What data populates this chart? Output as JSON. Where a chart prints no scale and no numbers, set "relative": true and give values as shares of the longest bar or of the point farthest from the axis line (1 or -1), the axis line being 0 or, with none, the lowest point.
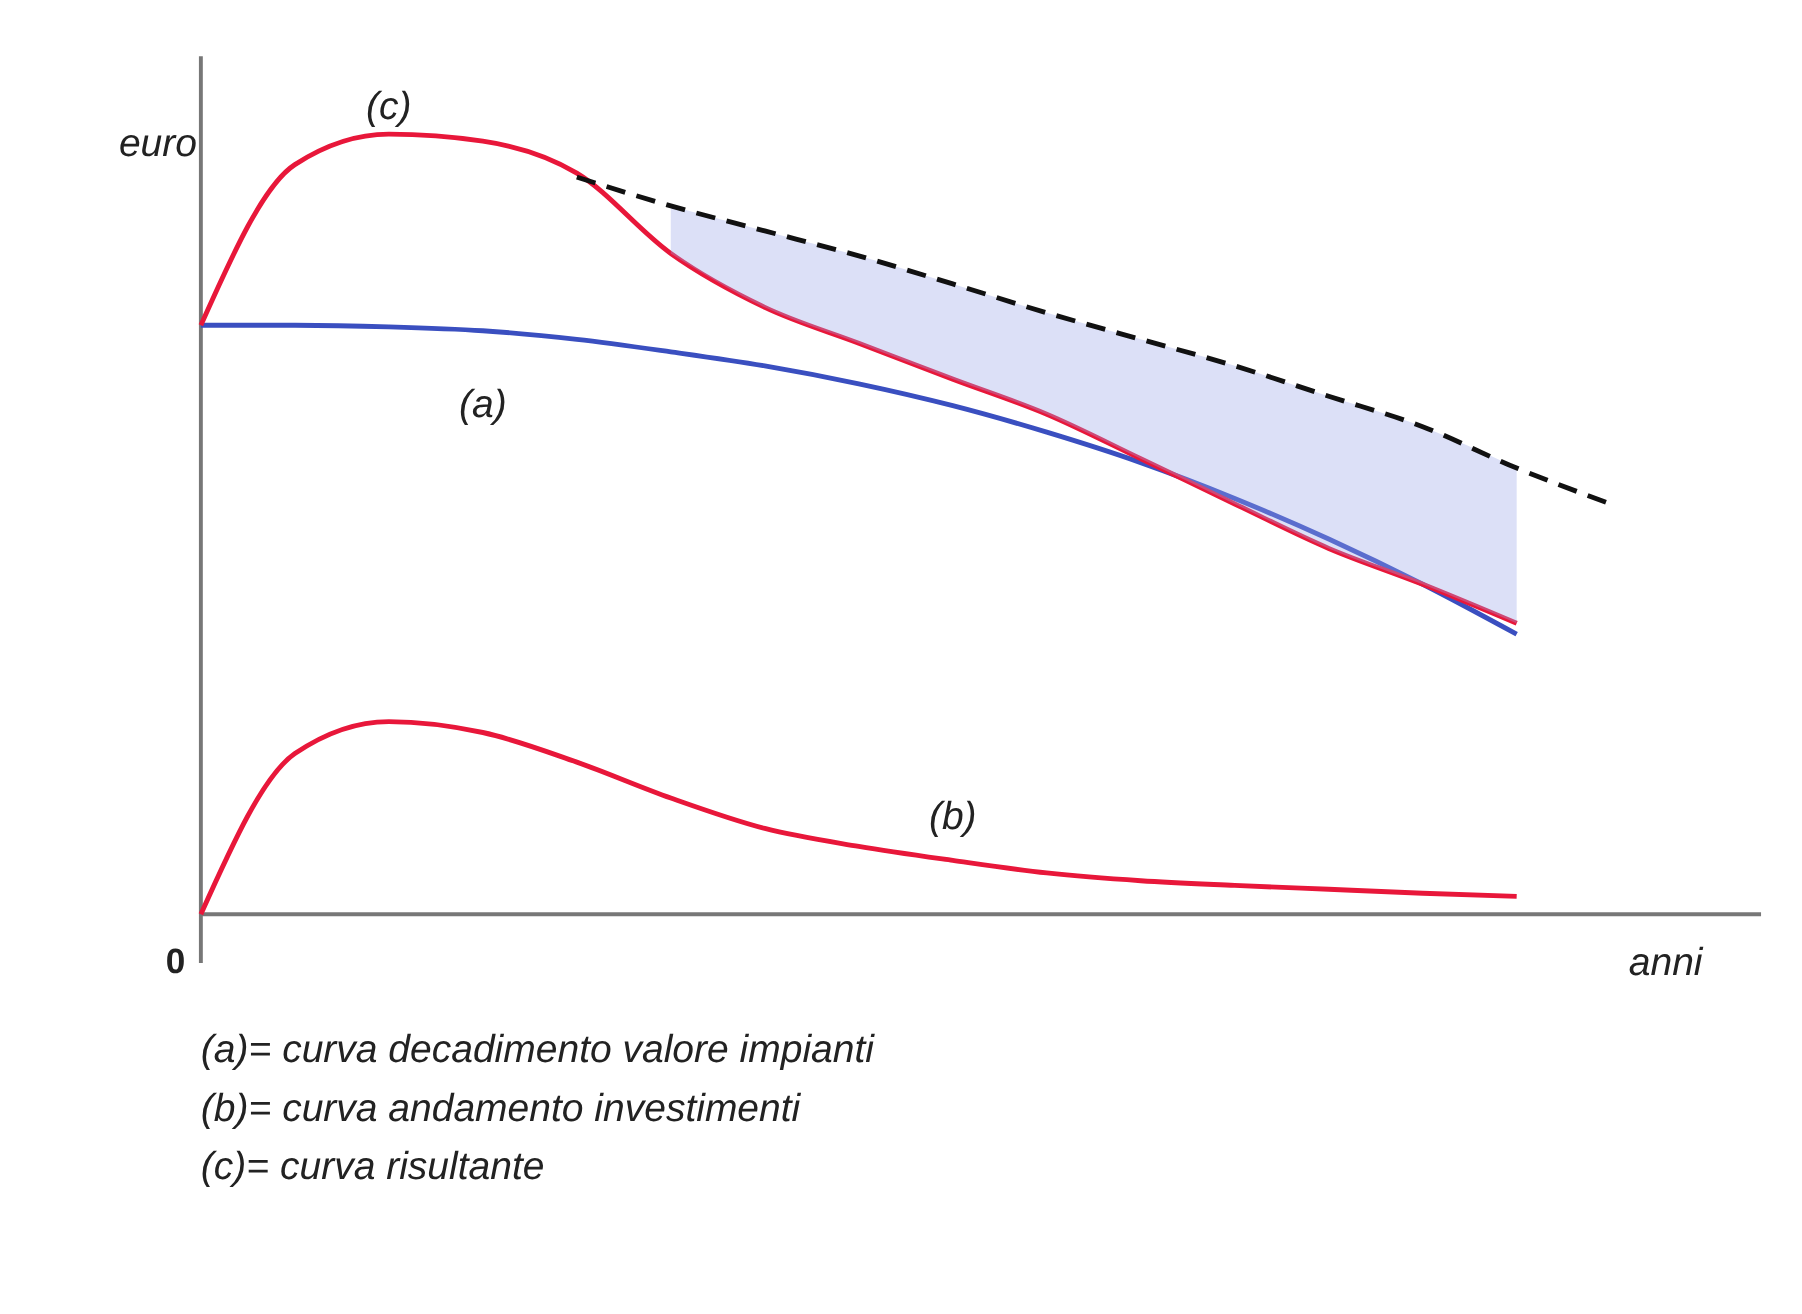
{
  "chart_data": {
    "type": "line",
    "relative": true,
    "xlabel": "anni",
    "ylabel": "euro",
    "marker": "none",
    "grid": false,
    "categories": [
      null,
      null,
      null,
      null,
      null,
      null,
      null,
      null,
      null,
      null,
      null,
      null,
      null,
      null,
      null,
      null,
      null
    ],
    "series": [
      {
        "name": "(a)",
        "color": "#3a4fc0",
        "values": [
          0.755,
          0.755,
          0.753,
          0.748,
          0.737,
          0.721,
          0.703,
          0.68,
          0.652,
          0.618,
          0.579,
          0.533,
          0.481,
          0.423,
          0.359,
          null,
          null
        ]
      },
      {
        "name": "(b)",
        "color": "#e8173a",
        "values": [
          0,
          0.206,
          0.247,
          0.233,
          0.195,
          0.149,
          0.11,
          0.087,
          0.069,
          0.053,
          0.043,
          0.037,
          0.032,
          0.027,
          0.023,
          null,
          null
        ]
      },
      {
        "name": "(c)",
        "color": "#e8173a",
        "values": [
          0.755,
          0.961,
          1.0,
          0.991,
          0.95,
          0.847,
          0.778,
          0.732,
          0.686,
          0.641,
          0.584,
          0.526,
          0.469,
          0.423,
          0.373,
          null,
          null
        ]
      },
      {
        "color": "#111111",
        "line_style": "dashed",
        "values": [
          null,
          null,
          null,
          null,
          0.945,
          0.908,
          0.876,
          0.844,
          0.808,
          0.771,
          0.737,
          0.703,
          0.664,
          0.625,
          0.572,
          0.526,
          null
        ],
        "lower": [
          null,
          null,
          null,
          null,
          null,
          0.847,
          0.778,
          0.732,
          0.686,
          0.641,
          0.584,
          0.526,
          0.469,
          0.423,
          0.373,
          null,
          null
        ],
        "upper": [
          null,
          null,
          null,
          null,
          null,
          0.908,
          0.876,
          0.844,
          0.808,
          0.771,
          0.737,
          0.703,
          0.664,
          0.625,
          0.572,
          null,
          null
        ]
      }
    ],
    "annotations": [
      "0",
      "(a)= curva decadimento valore impianti",
      "(b)= curva andamento investimenti",
      "(c)= curva risultante"
    ]
  }
}
